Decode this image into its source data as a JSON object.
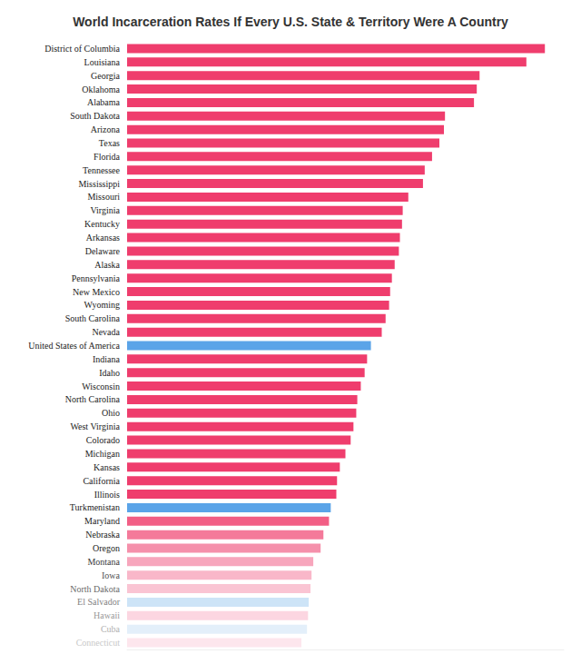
{
  "chart_data": {
    "type": "bar",
    "title": "World Incarceration Rates If Every U.S. State & Territory Were A Country",
    "orientation": "horizontal",
    "categories": [
      "District of Columbia",
      "Louisiana",
      "Georgia",
      "Oklahoma",
      "Alabama",
      "South Dakota",
      "Arizona",
      "Texas",
      "Florida",
      "Tennessee",
      "Mississippi",
      "Missouri",
      "Virginia",
      "Kentucky",
      "Arkansas",
      "Delaware",
      "Alaska",
      "Pennsylvania",
      "New Mexico",
      "Wyoming",
      "South Carolina",
      "Nevada",
      "United States of America",
      "Indiana",
      "Idaho",
      "Wisconsin",
      "North Carolina",
      "Ohio",
      "West Virginia",
      "Colorado",
      "Michigan",
      "Kansas",
      "California",
      "Illinois",
      "Turkmenistan",
      "Maryland",
      "Nebraska",
      "Oregon",
      "Montana",
      "Iowa",
      "North Dakota",
      "El Salvador",
      "Hawaii",
      "Cuba",
      "Connecticut"
    ],
    "values": [
      1196,
      1143,
      1009,
      1001,
      993,
      910,
      907,
      894,
      873,
      852,
      847,
      805,
      789,
      787,
      781,
      778,
      766,
      758,
      753,
      750,
      740,
      729,
      698,
      687,
      680,
      669,
      659,
      656,
      648,
      640,
      625,
      609,
      601,
      599,
      583,
      578,
      562,
      554,
      533,
      528,
      525,
      520,
      518,
      515,
      499
    ],
    "colors": [
      "#ef3d6d",
      "#ef3d6d",
      "#ef3d6d",
      "#ef3d6d",
      "#ef3d6d",
      "#ef3d6d",
      "#ef3d6d",
      "#ef3d6d",
      "#ef3d6d",
      "#ef3d6d",
      "#ef3d6d",
      "#ef3d6d",
      "#ef3d6d",
      "#ef3d6d",
      "#ef3d6d",
      "#ef3d6d",
      "#ef3d6d",
      "#ef3d6d",
      "#ef3d6d",
      "#ef3d6d",
      "#ef3d6d",
      "#ef3d6d",
      "#5ba4e8",
      "#ef3d6d",
      "#ef3d6d",
      "#ef3d6d",
      "#ef3d6d",
      "#ef3d6d",
      "#ef3d6d",
      "#ef3d6d",
      "#ef3d6d",
      "#ef3d6d",
      "#ef3d6d",
      "#ef3d6d",
      "#5ba4e8",
      "#f25e85",
      "#f47a9a",
      "#f590ab",
      "#f7a6bc",
      "#f9b7c9",
      "#fac4d3",
      "#cde4f7",
      "#fcd6e1",
      "#e3effa",
      "#fde6ed"
    ],
    "xlim": [
      0,
      1250
    ],
    "tick_labels": "y",
    "grid": false
  }
}
